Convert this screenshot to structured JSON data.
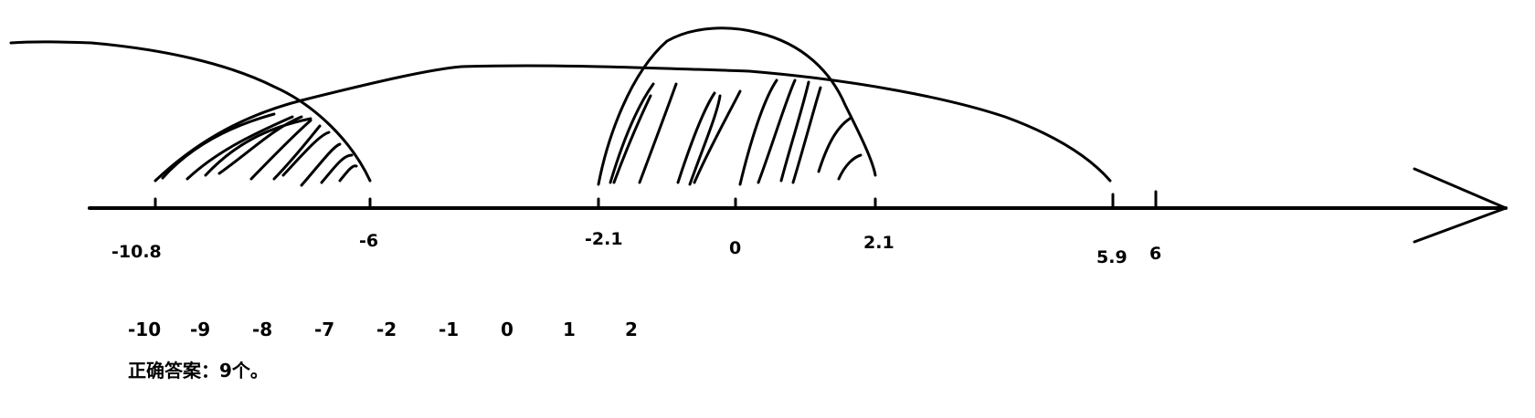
{
  "axis_labels": [
    "-10.8",
    "-6",
    "-2.1",
    "0",
    "2.1",
    "5.9",
    "6"
  ],
  "integers": [
    "-10",
    "-9",
    "-8",
    "-7",
    "-2",
    "-1",
    "0",
    "1",
    "2"
  ],
  "answer": "正确答案：9个。",
  "stroke_color": "#000000"
}
